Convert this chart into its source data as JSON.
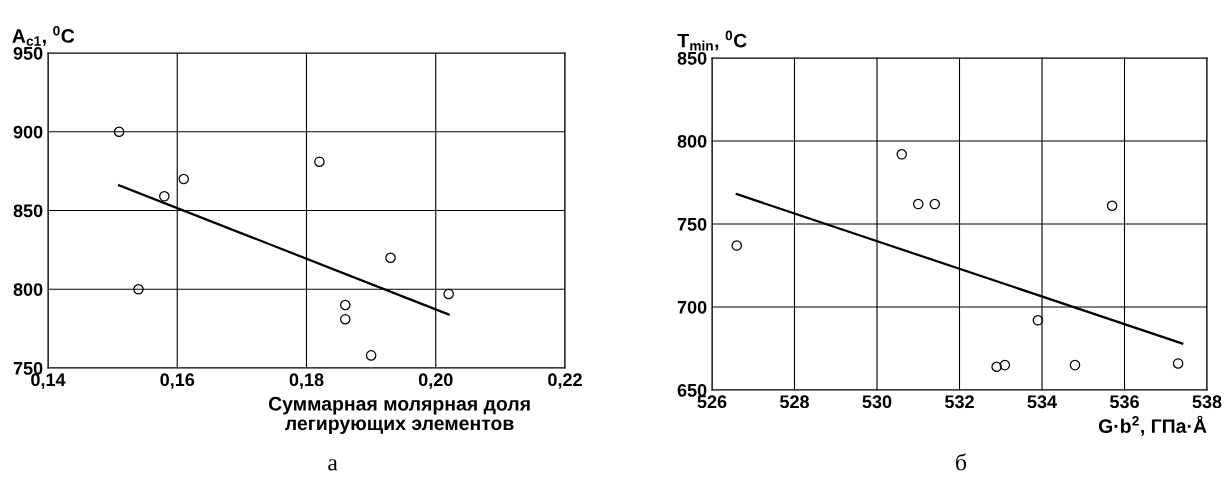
{
  "chart_data": [
    {
      "type": "scatter",
      "ylabel": "A$_{c1}$, $^{0}$C",
      "xlabel": "Суммарная молярная доля\nлегирующих элементов",
      "annotations": [
        "а"
      ],
      "xlim": [
        0.14,
        0.22
      ],
      "xticks": [
        {
          "value": 0.14,
          "label": "0,14"
        },
        {
          "value": 0.16,
          "label": "0,16"
        },
        {
          "value": 0.18,
          "label": "0,18"
        },
        {
          "value": 0.2,
          "label": "0,20"
        },
        {
          "value": 0.22,
          "label": "0,22"
        }
      ],
      "ylim": [
        750,
        950
      ],
      "yticks": [
        750,
        800,
        850,
        900,
        950
      ],
      "grid": true,
      "series": [
        {
          "marker": "circle",
          "color": "#000000",
          "x": [
            0.151,
            0.154,
            0.158,
            0.161,
            0.182,
            0.186,
            0.186,
            0.19,
            0.193,
            0.202
          ],
          "values": [
            900,
            800,
            859,
            870,
            881,
            790,
            781,
            758,
            820,
            797
          ]
        },
        {
          "type": "line",
          "color": "#000000",
          "x": [
            0.151,
            0.202
          ],
          "values": [
            866,
            784
          ]
        }
      ]
    },
    {
      "type": "scatter",
      "ylabel": "T$_{min}$, $^{0}$C",
      "xlabel": "G·b$^{2}$, ГПа·Å",
      "annotations": [
        "б"
      ],
      "xlim": [
        526,
        538
      ],
      "xticks": [
        526,
        528,
        530,
        532,
        534,
        536,
        538
      ],
      "ylim": [
        650,
        850
      ],
      "yticks": [
        650,
        700,
        750,
        800,
        850
      ],
      "grid": true,
      "series": [
        {
          "marker": "circle",
          "color": "#000000",
          "x": [
            526.6,
            530.6,
            531.0,
            531.4,
            532.9,
            533.1,
            533.9,
            534.8,
            535.7,
            537.3
          ],
          "values": [
            737,
            792,
            762,
            762,
            664,
            665,
            692,
            665,
            761,
            666
          ]
        },
        {
          "type": "line",
          "color": "#000000",
          "x": [
            526.6,
            537.4
          ],
          "values": [
            768,
            678
          ]
        }
      ]
    }
  ]
}
